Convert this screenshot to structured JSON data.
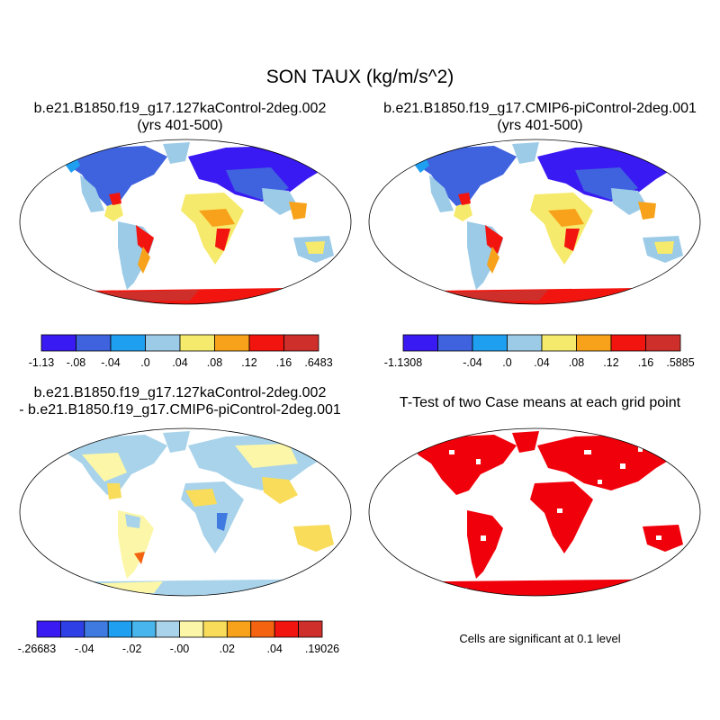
{
  "title": "SON TAUX (kg/m/s^2)",
  "panels": [
    {
      "title_line1": "b.e21.B1850.f19_g17.127kaControl-2deg.002",
      "title_line2": "(yrs 401-500)",
      "colorbar": {
        "colors": [
          "#3a1af2",
          "#3f63df",
          "#1e9ff0",
          "#9ccbe8",
          "#f6ea6c",
          "#f7a21a",
          "#f2150f",
          "#cf2f2a"
        ],
        "labels": [
          "-1.13",
          "-.08",
          "-.04",
          ".0",
          ".04",
          ".08",
          ".12",
          ".16",
          ".6483"
        ]
      }
    },
    {
      "title_line1": "b.e21.B1850.f19_g17.CMIP6-piControl-2deg.001",
      "title_line2": "(yrs 401-500)",
      "colorbar": {
        "colors": [
          "#3a1af2",
          "#3f63df",
          "#1e9ff0",
          "#9ccbe8",
          "#f6ea6c",
          "#f7a21a",
          "#f2150f",
          "#cf2f2a"
        ],
        "labels": [
          "-1.1308",
          "",
          "-.04",
          ".0",
          ".04",
          ".08",
          ".12",
          ".16",
          ".5885"
        ]
      }
    },
    {
      "title_line1": "b.e21.B1850.f19_g17.127kaControl-2deg.002",
      "title_line2": "- b.e21.B1850.f19_g17.CMIP6-piControl-2deg.001",
      "colorbar": {
        "colors": [
          "#3a1af2",
          "#2f3fe6",
          "#3f7ae0",
          "#1e9ff0",
          "#48b6ec",
          "#a8d3ea",
          "#fcf7a8",
          "#f8dc5a",
          "#f7a21a",
          "#f46410",
          "#f2150f",
          "#cf2f2a"
        ],
        "labels": [
          "-.26683",
          "",
          "-.04",
          "",
          "-.02",
          "",
          "-.00",
          "",
          ".02",
          "",
          ".04",
          "",
          ".19026"
        ]
      }
    },
    {
      "title_line1": "T-Test of two Case means at each grid point",
      "significance_note": "Cells are significant at 0.1 level",
      "significant_color": "#f0000a"
    }
  ]
}
